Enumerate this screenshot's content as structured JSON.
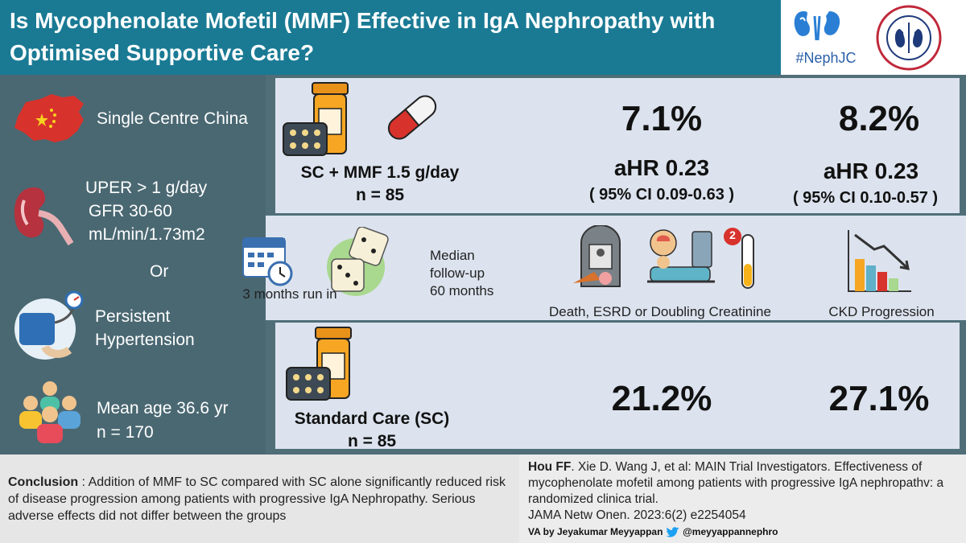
{
  "header": {
    "title": "Is Mycophenolate Mofetil (MMF) Effective in IgA Nephropathy with Optimised Supportive Care?"
  },
  "logos": {
    "nephjc_tag": "#NephJC"
  },
  "population": {
    "site": "Single Centre China",
    "uper": "UPER > 1 g/day",
    "gfr": "GFR 30-60",
    "gfr_unit": "mL/min/1.73m2",
    "or": "Or",
    "htn_line1": "Persistent",
    "htn_line2": "Hypertension",
    "age": "Mean age 36.6 yr",
    "n": "n = 170"
  },
  "arms": {
    "mmf": {
      "label": "SC + MMF 1.5 g/day",
      "n": "n = 85"
    },
    "sc": {
      "label": "Standard Care (SC)",
      "n": "n = 85"
    }
  },
  "results": {
    "mmf_primary": "7.1%",
    "mmf_ckd": "8.2%",
    "mmf_primary_ahr": "aHR 0.23",
    "mmf_primary_ci": "( 95% CI 0.09-0.63 )",
    "mmf_ckd_ahr": "aHR  0.23",
    "mmf_ckd_ci": "( 95% CI 0.10-0.57 )",
    "sc_primary": "21.2%",
    "sc_ckd": "27.1%"
  },
  "design": {
    "run_in": "3 months run in",
    "followup_1": "Median",
    "followup_2": "follow-up",
    "followup_3": "60 months",
    "badge": "2",
    "outcome_primary": "Death, ESRD or Doubling Creatinine",
    "outcome_ckd": "CKD Progression"
  },
  "footer": {
    "conclusion_label": "Conclusion",
    "conclusion_text": " : Addition of MMF to SC compared with SC alone significantly reduced risk of disease progression among patients with progressive IgA Nephropathy. Serious adverse effects did not differ between the groups",
    "ref_author": "Hou FF",
    "ref_rest": ". Xie D. Wang J, et al: MAIN Trial Investigators. Effectiveness of mycophenolate mofetil among patients with progressive IgA nephropathv: a randomized clinica trial.",
    "ref_journal": "JAMA Netw Onen. 2023:6(2) e2254054",
    "va_by": "VA by Jeyakumar Meyyappan",
    "va_handle": "@meyyappannephro"
  },
  "colors": {
    "header": "#1a7a94",
    "left_panel": "#4a6872",
    "panel": "#dce3ee",
    "china_red": "#d8322c",
    "bottle_orange": "#f6a623"
  },
  "icons": {
    "china_map": "china-map-icon",
    "kidney": "kidney-icon",
    "blood_pressure": "blood-pressure-icon",
    "group": "group-icon",
    "pill_bottle": "pill-bottle-icon",
    "capsule": "capsule-icon",
    "calendar": "calendar-icon",
    "dice": "dice-icon",
    "tombstone": "tombstone-icon",
    "patient": "patient-icon",
    "test_tube": "test-tube-icon",
    "bar_chart_down": "bar-chart-down-icon",
    "twitter": "twitter-icon"
  }
}
